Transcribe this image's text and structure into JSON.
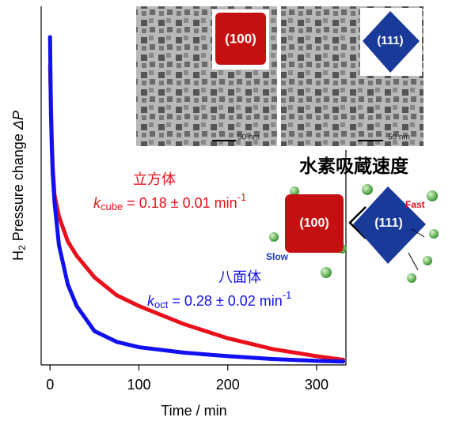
{
  "chart_data": {
    "type": "line",
    "x_label": "Time / min",
    "y_label": {
      "main": "H",
      "sub": "2",
      "rest": " Pressure change ",
      "symbol": "ΔP"
    },
    "x": [
      0,
      1,
      2,
      3,
      5,
      10,
      20,
      30,
      50,
      75,
      100,
      150,
      200,
      250,
      300,
      330
    ],
    "series": [
      {
        "name": "立方体",
        "color": "#e8101a",
        "values": [
          0.83,
          0.72,
          0.62,
          0.55,
          0.47,
          0.41,
          0.34,
          0.3,
          0.24,
          0.19,
          0.16,
          0.11,
          0.07,
          0.04,
          0.02,
          0.01
        ]
      },
      {
        "name": "八面体",
        "color": "#1010f0",
        "values": [
          0.91,
          0.7,
          0.6,
          0.53,
          0.45,
          0.33,
          0.22,
          0.16,
          0.09,
          0.06,
          0.045,
          0.03,
          0.02,
          0.012,
          0.007,
          0.005
        ]
      }
    ],
    "xlim": [
      -10,
      333
    ],
    "xticks": [
      0,
      100,
      200,
      300
    ],
    "ylim": [
      0,
      1
    ],
    "annotations": {
      "cube": {
        "k": "k",
        "sub": "cube",
        "text": " = 0.18 ± 0.01 min",
        "sup": "-1"
      },
      "oct": {
        "k": "k",
        "sub": "oct",
        "text": " = 0.28 ± 0.02 min",
        "sup": "-1"
      },
      "heading": "水素吸蔵速度",
      "facet_cube": "(100)",
      "facet_oct": "(111)",
      "facet_cube_small": "(100)",
      "facet_oct_small": "(111)",
      "slow": "Slow",
      "fast": "Fast",
      "scale_bar_1": "50 nm",
      "scale_bar_2": "50 nm"
    }
  }
}
